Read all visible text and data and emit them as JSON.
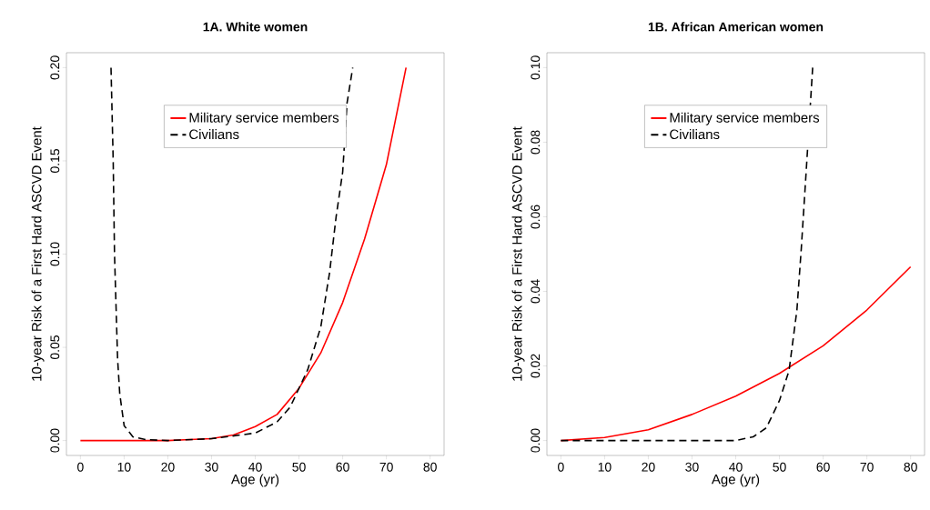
{
  "chart_data": [
    {
      "type": "line",
      "title": "1A. White women",
      "xlabel": "Age (yr)",
      "ylabel": "10-year Risk of a First Hard ASCVD Event",
      "xlim": [
        -3.2,
        83.2
      ],
      "ylim": [
        -0.008,
        0.208
      ],
      "xticks": [
        0,
        10,
        20,
        30,
        40,
        50,
        60,
        70,
        80
      ],
      "yticks": [
        {
          "value": 0,
          "label": "0.00"
        },
        {
          "value": 0.05,
          "label": "0.05"
        },
        {
          "value": 0.1,
          "label": "0.10"
        },
        {
          "value": 0.15,
          "label": "0.15"
        },
        {
          "value": 0.2,
          "label": "0.20"
        }
      ],
      "legend": "top",
      "marker": "none",
      "series": [
        {
          "name": "Military service members",
          "color": "#ff0000",
          "line_style": "solid",
          "x": [
            0,
            10,
            20,
            25,
            30,
            35,
            40,
            45,
            50,
            55,
            60,
            65,
            70,
            74.5
          ],
          "values": [
            0,
            0,
            0,
            0.0005,
            0.001,
            0.003,
            0.0075,
            0.014,
            0.028,
            0.047,
            0.074,
            0.108,
            0.148,
            0.2
          ]
        },
        {
          "name": "Civilians",
          "color": "#000000",
          "line_style": "dashed",
          "x": [
            7,
            7.5,
            7.8,
            8.5,
            9,
            10,
            12,
            15,
            20,
            30,
            40,
            45,
            48,
            50,
            52,
            55,
            57,
            58.5,
            60,
            61,
            62.3
          ],
          "values": [
            0.2,
            0.15,
            0.1,
            0.044,
            0.025,
            0.008,
            0.002,
            0.0005,
            0,
            0.001,
            0.004,
            0.01,
            0.018,
            0.028,
            0.038,
            0.061,
            0.09,
            0.12,
            0.144,
            0.181,
            0.2
          ]
        }
      ]
    },
    {
      "type": "line",
      "title": "1B. African American women",
      "xlabel": "Age (yr)",
      "ylabel": "10-year Risk of a First Hard ASCVD Event",
      "xlim": [
        -3.2,
        83.2
      ],
      "ylim": [
        -0.004,
        0.104
      ],
      "xticks": [
        0,
        10,
        20,
        30,
        40,
        50,
        60,
        70,
        80
      ],
      "yticks": [
        {
          "value": 0,
          "label": "0.00"
        },
        {
          "value": 0.02,
          "label": "0.02"
        },
        {
          "value": 0.04,
          "label": "0.04"
        },
        {
          "value": 0.06,
          "label": "0.06"
        },
        {
          "value": 0.08,
          "label": "0.08"
        },
        {
          "value": 0.1,
          "label": "0.10"
        }
      ],
      "legend": "top",
      "marker": "none",
      "series": [
        {
          "name": "Military service members",
          "color": "#ff0000",
          "line_style": "solid",
          "x": [
            0,
            10,
            20,
            30,
            40,
            50,
            60,
            70,
            80
          ],
          "values": [
            0,
            0.0008,
            0.0029,
            0.007,
            0.0119,
            0.018,
            0.0254,
            0.035,
            0.0466
          ]
        },
        {
          "name": "Civilians",
          "color": "#000000",
          "line_style": "dashed",
          "x": [
            0,
            10,
            20,
            30,
            40,
            44,
            47,
            50,
            52.2,
            54,
            55,
            56,
            57.6
          ],
          "values": [
            0,
            0,
            0,
            0,
            0,
            0.001,
            0.0034,
            0.0107,
            0.0188,
            0.035,
            0.0515,
            0.07,
            0.1
          ]
        }
      ]
    }
  ]
}
